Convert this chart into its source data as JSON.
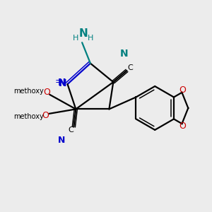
{
  "bg_color": "#ececec",
  "bond_color": "#000000",
  "n_color": "#0000cc",
  "o_color": "#cc0000",
  "teal_color": "#008080",
  "figsize": [
    3.0,
    3.0
  ],
  "dpi": 100,
  "xlim": [
    0,
    10
  ],
  "ylim": [
    0,
    10
  ],
  "lw": 1.6,
  "lw_inner": 1.1
}
